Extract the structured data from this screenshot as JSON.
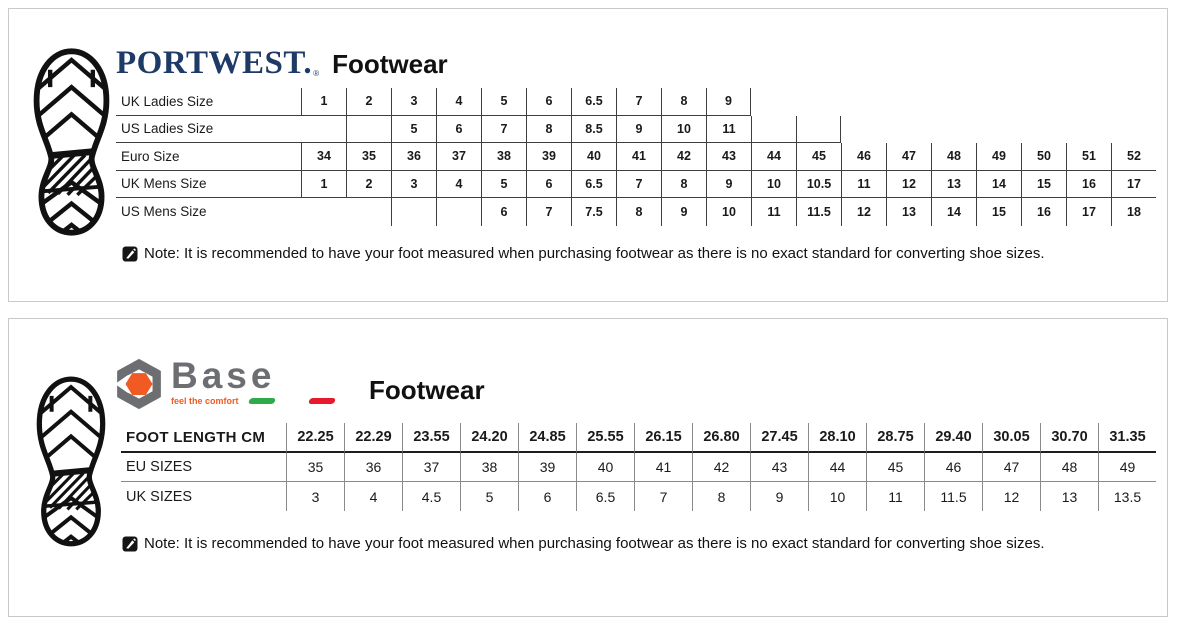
{
  "colors": {
    "portwest_navy": "#1e3a66",
    "base_gray": "#6d6e71",
    "base_orange": "#f15a22",
    "flag_green": "#2faa4a",
    "flag_red": "#e8192c",
    "line_dark": "#3f3f3f",
    "line_gray": "#8a8a8a"
  },
  "panel_portwest": {
    "brand": "PORTWEST.",
    "brand_mark": "®",
    "title": "Footwear",
    "note": "Note: It is recommended to have your foot measured when purchasing footwear as there is no exact standard for converting shoe sizes.",
    "table": {
      "rows": [
        {
          "label": "UK Ladies Size",
          "cells": [
            "1",
            "2",
            "3",
            "4",
            "5",
            "6",
            "6.5",
            "7",
            "8",
            "9",
            null,
            null,
            null,
            null,
            null,
            null,
            null,
            null,
            null
          ]
        },
        {
          "label": "US Ladies Size",
          "cells": [
            "",
            "",
            "5",
            "6",
            "7",
            "8",
            "8.5",
            "9",
            "10",
            "11",
            "",
            "",
            null,
            null,
            null,
            null,
            null,
            null,
            null
          ]
        },
        {
          "label": "Euro Size",
          "cells": [
            "34",
            "35",
            "36",
            "37",
            "38",
            "39",
            "40",
            "41",
            "42",
            "43",
            "44",
            "45",
            "46",
            "47",
            "48",
            "49",
            "50",
            "51",
            "52"
          ]
        },
        {
          "label": "UK Mens Size",
          "cells": [
            "1",
            "2",
            "3",
            "4",
            "5",
            "6",
            "6.5",
            "7",
            "8",
            "9",
            "10",
            "10.5",
            "11",
            "12",
            "13",
            "14",
            "15",
            "16",
            "17"
          ]
        },
        {
          "label": "US Mens Size",
          "cells": [
            null,
            null,
            "",
            "",
            "6",
            "7",
            "7.5",
            "8",
            "9",
            "10",
            "11",
            "11.5",
            "12",
            "13",
            "14",
            "15",
            "16",
            "17",
            "18"
          ]
        }
      ]
    }
  },
  "panel_base": {
    "brand": "Base",
    "tagline": "feel the comfort",
    "title": "Footwear",
    "note": "Note: It is recommended to have your foot measured when purchasing footwear as there is no exact standard for converting shoe sizes.",
    "table": {
      "rows": [
        {
          "label": "FOOT LENGTH CM",
          "cells": [
            "22.25",
            "22.29",
            "23.55",
            "24.20",
            "24.85",
            "25.55",
            "26.15",
            "26.80",
            "27.45",
            "28.10",
            "28.75",
            "29.40",
            "30.05",
            "30.70",
            "31.35"
          ]
        },
        {
          "label": "EU SIZES",
          "cells": [
            "35",
            "36",
            "37",
            "38",
            "39",
            "40",
            "41",
            "42",
            "43",
            "44",
            "45",
            "46",
            "47",
            "48",
            "49"
          ]
        },
        {
          "label": "UK SIZES",
          "cells": [
            "3",
            "4",
            "4.5",
            "5",
            "6",
            "6.5",
            "7",
            "8",
            "9",
            "10",
            "11",
            "11.5",
            "12",
            "13",
            "13.5"
          ]
        }
      ]
    }
  }
}
